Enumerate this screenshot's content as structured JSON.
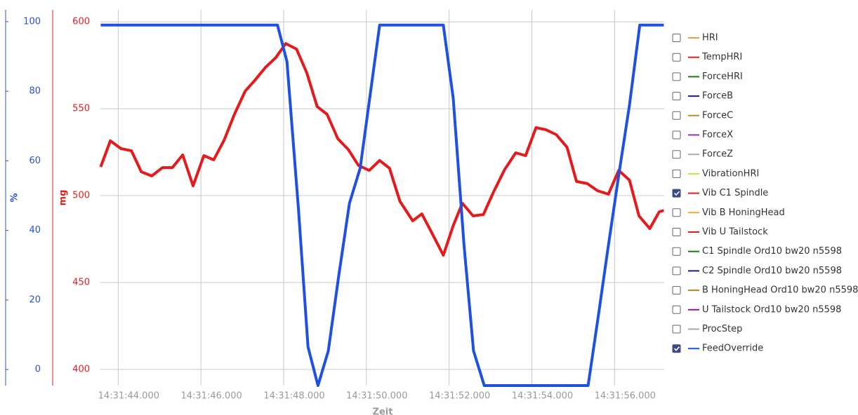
{
  "chart_data": {
    "type": "line",
    "x_label": "Zeit",
    "y_label": "mg",
    "y2_label": "%",
    "xlim": [
      43.57,
      57.2
    ],
    "xticks": [
      {
        "value": 44,
        "label": "14:31:44.000"
      },
      {
        "value": 46,
        "label": "14:31:46.000"
      },
      {
        "value": 48,
        "label": "14:31:48.000"
      },
      {
        "value": 50,
        "label": "14:31:50.000"
      },
      {
        "value": 52,
        "label": "14:31:52.000"
      },
      {
        "value": 54,
        "label": "14:31:54.000"
      },
      {
        "value": 56,
        "label": "14:31:56.000"
      }
    ],
    "ylim": [
      390.7,
      606.9
    ],
    "yticks": [
      400,
      450,
      500,
      550,
      600
    ],
    "y_color": "#e02020",
    "y2lim": [
      -4.6,
      103.4
    ],
    "y2ticks": [
      0,
      20,
      40,
      60,
      80,
      100
    ],
    "y2_color": "#2a50d0",
    "grid": true,
    "series": [
      {
        "name": "HRI",
        "color": "#f0a030",
        "checked": false
      },
      {
        "name": "TempHRI",
        "color": "#e02020",
        "checked": false
      },
      {
        "name": "ForceHRI",
        "color": "#1a7a1a",
        "checked": false
      },
      {
        "name": "ForceB",
        "color": "#1a1a9a",
        "checked": false
      },
      {
        "name": "ForceC",
        "color": "#c09020",
        "checked": false
      },
      {
        "name": "ForceX",
        "color": "#9030c0",
        "checked": false
      },
      {
        "name": "ForceZ",
        "color": "#aaaaaa",
        "checked": false
      },
      {
        "name": "VibrationHRI",
        "color": "#b0f040",
        "checked": false
      },
      {
        "name": "Vib C1 Spindle",
        "color": "#e41a1c",
        "checked": true,
        "x": [
          43.576,
          43.81,
          44.07,
          44.32,
          44.56,
          44.81,
          45.07,
          45.31,
          45.56,
          45.81,
          46.07,
          46.31,
          46.56,
          46.81,
          47.07,
          47.31,
          47.56,
          47.81,
          48.05,
          48.31,
          48.56,
          48.81,
          49.05,
          49.31,
          49.56,
          49.81,
          50.07,
          50.32,
          50.56,
          50.81,
          51.12,
          51.34,
          51.59,
          51.86,
          52.1,
          52.32,
          52.58,
          52.83,
          53.08,
          53.34,
          53.61,
          53.85,
          54.1,
          54.34,
          54.59,
          54.85,
          55.08,
          55.34,
          55.59,
          55.85,
          56.1,
          56.36,
          56.59,
          56.85,
          57.08,
          57.19
        ],
        "values": [
          516.5,
          531.5,
          527.0,
          525.8,
          513.7,
          511.3,
          516.1,
          516.1,
          523.4,
          505.6,
          523.0,
          520.6,
          531.9,
          546.8,
          560.1,
          566.5,
          573.8,
          579.4,
          587.5,
          584.3,
          570.6,
          551.2,
          546.8,
          532.7,
          526.6,
          517.3,
          514.5,
          520.2,
          515.7,
          496.8,
          485.5,
          489.5,
          478.2,
          465.7,
          482.7,
          495.6,
          488.3,
          489.1,
          502.4,
          514.9,
          524.6,
          523.0,
          539.1,
          537.9,
          535.1,
          527.8,
          508.1,
          506.9,
          502.8,
          500.8,
          514.5,
          508.9,
          488.3,
          481.0,
          490.7,
          491.5
        ]
      },
      {
        "name": "Vib B HoningHead",
        "color": "#f5a623",
        "checked": false
      },
      {
        "name": "Vib U Tailstock",
        "color": "#e02020",
        "checked": false
      },
      {
        "name": "C1 Spindle Ord10 bw20 n5598",
        "color": "#1a7a1a",
        "checked": false
      },
      {
        "name": "C2 Spindle Ord10 bw20 n5598",
        "color": "#1a1a8a",
        "checked": false
      },
      {
        "name": "B HoningHead Ord10 bw20 n5598",
        "color": "#b08a10",
        "checked": false
      },
      {
        "name": "U Tailstock Ord10 bw20 n5598",
        "color": "#8a1a9a",
        "checked": false
      },
      {
        "name": "ProcStep",
        "color": "#aaaaaa",
        "checked": false
      },
      {
        "name": "FeedOverride",
        "color": "#2050e0",
        "checked": true,
        "axis": "y2",
        "x": [
          43.576,
          47.85,
          48.08,
          48.36,
          48.59,
          48.83,
          49.08,
          49.34,
          49.59,
          49.85,
          50.32,
          51.86,
          52.1,
          52.36,
          52.59,
          52.85,
          55.36,
          55.61,
          55.85,
          56.1,
          56.36,
          56.61,
          57.19
        ],
        "values": [
          99.0,
          99.0,
          88.5,
          45.8,
          6.5,
          -4.6,
          5.4,
          27.6,
          47.8,
          57.9,
          99.0,
          99.0,
          78.0,
          35.7,
          5.4,
          -4.6,
          -4.6,
          15.6,
          35.7,
          55.8,
          76.0,
          99.0,
          99.0
        ]
      }
    ]
  }
}
